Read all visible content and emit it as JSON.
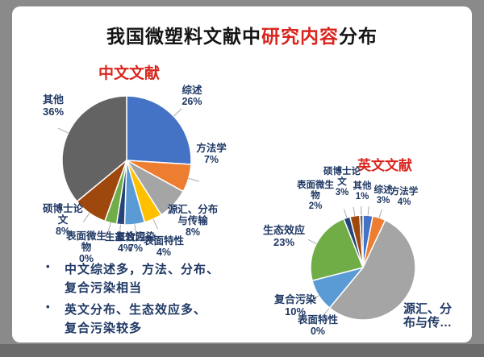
{
  "window": {
    "bg_outer": "#8a8a8a",
    "bg_bottom_band": "#6b6b6b",
    "slide_bg": "#ffffff"
  },
  "title": {
    "prefix": "我国微塑料文献中",
    "highlight": "研究内容",
    "suffix": "分布",
    "text_color": "#141414",
    "highlight_color": "#d9251d"
  },
  "bullets": {
    "marker": "•",
    "color": "#1F3864",
    "items": [
      {
        "lines": [
          "中文综述多，方法、分布、",
          "复合污染相当"
        ]
      },
      {
        "lines": [
          "英文分布、生态效应多、",
          "复合污染较多"
        ]
      }
    ]
  },
  "chart_data": [
    {
      "type": "pie",
      "title": "中文文献",
      "title_color": "#d9251d",
      "label_color": "#1F3864",
      "legend_position": "none",
      "categories": [
        "综述",
        "方法学",
        "源汇、分布与传输",
        "表面特性",
        "生态效应",
        "复合污染",
        "表面微生物",
        "硕博士论文",
        "其他"
      ],
      "values": [
        26,
        7,
        8,
        4,
        4,
        7,
        0,
        8,
        36
      ],
      "unit": "%",
      "slice_labels": [
        [
          "综述",
          "26%"
        ],
        [
          "方法学",
          "7%"
        ],
        [
          "源汇、分布",
          "与传输",
          "8%"
        ],
        [
          "表面特性",
          "4%"
        ],
        [
          "生态效应",
          "4%"
        ],
        [
          "复合污染",
          "7%"
        ],
        [
          "表面微生",
          "物",
          "0%"
        ],
        [
          "硕博士论",
          "文",
          "8%"
        ],
        [
          "其他",
          "36%"
        ]
      ],
      "colors": [
        "#4472C4",
        "#ED7D31",
        "#A5A5A5",
        "#FFC000",
        "#70AD47",
        "#5B9BD5",
        "#264478",
        "#9E480E",
        "#636363"
      ],
      "render_slices": {
        "weights": [
          26,
          7,
          8,
          4.5,
          5,
          2,
          3,
          8.5,
          36
        ],
        "colors": [
          "#4472C4",
          "#ED7D31",
          "#A5A5A5",
          "#FFC000",
          "#5B9BD5",
          "#264478",
          "#70AD47",
          "#9E480E",
          "#636363"
        ]
      }
    },
    {
      "type": "pie",
      "title": "英文文献",
      "title_color": "#d9251d",
      "label_color": "#1F3864",
      "legend_position": "none",
      "categories": [
        "综述",
        "方法学",
        "源汇、分布与传输",
        "表面特性",
        "生态效应",
        "复合污染",
        "表面微生物",
        "硕博士论文",
        "其他"
      ],
      "values": [
        3,
        4,
        54,
        0,
        23,
        10,
        2,
        3,
        1
      ],
      "unit": "%",
      "slice_labels": [
        [
          "综述",
          "3%"
        ],
        [
          "方法学",
          "4%"
        ],
        [
          "源汇、分",
          "布与传…"
        ],
        [
          "表面特性",
          "0%"
        ],
        [
          "生态效应",
          "23%"
        ],
        [
          "复合污染",
          "10%"
        ],
        [
          "表面微生",
          "物",
          "2%"
        ],
        [
          "硕博士论",
          "文",
          "3%"
        ],
        [
          "其他",
          "1%"
        ]
      ],
      "colors": [
        "#4472C4",
        "#ED7D31",
        "#A5A5A5",
        "#FFC000",
        "#70AD47",
        "#5B9BD5",
        "#264478",
        "#9E480E",
        "#636363"
      ],
      "render_slices": {
        "weights": [
          3,
          4,
          54,
          0,
          10,
          23,
          2,
          3,
          1
        ],
        "colors": [
          "#4472C4",
          "#ED7D31",
          "#A5A5A5",
          "#FFC000",
          "#5B9BD5",
          "#70AD47",
          "#264478",
          "#9E480E",
          "#636363"
        ]
      }
    }
  ]
}
